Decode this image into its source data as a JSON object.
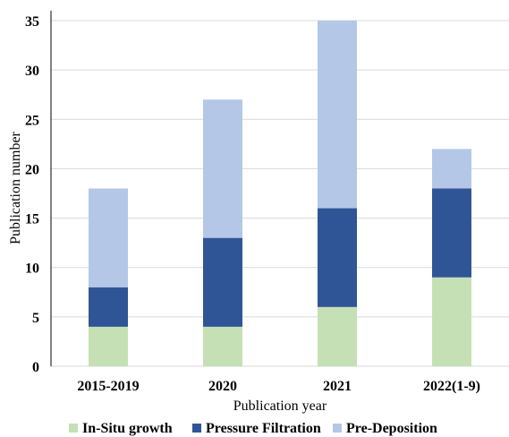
{
  "chart_data": {
    "type": "bar",
    "stacked": true,
    "categories": [
      "2015-2019",
      "2020",
      "2021",
      "2022(1-9)"
    ],
    "series": [
      {
        "name": "In-Situ growth",
        "values": [
          4,
          4,
          6,
          9
        ],
        "color": "#c5e0b4"
      },
      {
        "name": "Pressure Filtration",
        "values": [
          4,
          9,
          10,
          9
        ],
        "color": "#2f5597"
      },
      {
        "name": "Pre-Deposition",
        "values": [
          10,
          14,
          19,
          4
        ],
        "color": "#b4c7e7"
      }
    ],
    "xlabel": "Publication year",
    "ylabel": "Publication number",
    "ylim": [
      0,
      35
    ],
    "yticks": [
      0,
      5,
      10,
      15,
      20,
      25,
      30,
      35
    ],
    "grid": true,
    "legend_position": "bottom"
  }
}
